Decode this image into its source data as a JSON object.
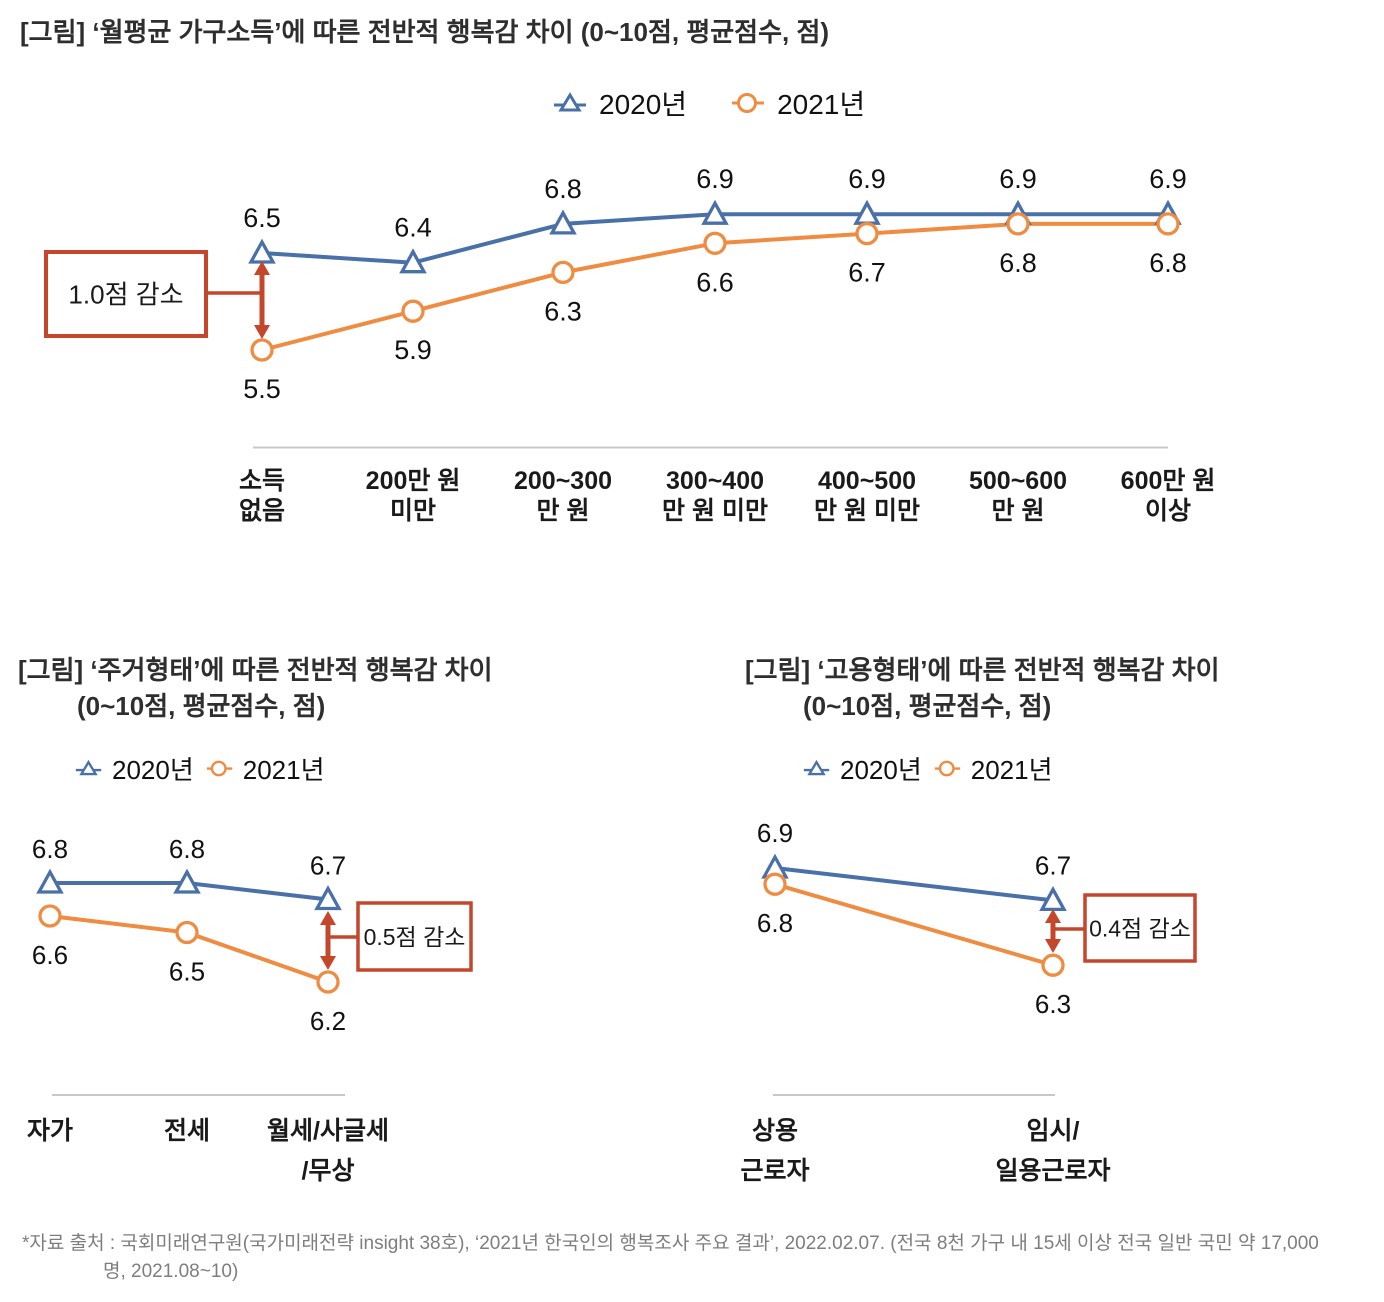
{
  "colors": {
    "y2020": "#4A70A8",
    "y2021": "#F08C41",
    "annotation": "#C4472B",
    "axis": "#C8C8C8",
    "value_text": "#111111"
  },
  "legend": {
    "y2020": "2020년",
    "y2021": "2021년"
  },
  "footer": {
    "line1": "*자료 출처 : 국회미래연구원(국가미래전략 insight 38호), ‘2021년 한국인의 행복조사 주요 결과’, 2022.02.07. (전국 8천 가구 내 15세 이상 전국 일반 국민 약 17,000",
    "line2": "명, 2021.08~10)"
  },
  "chart_data": [
    {
      "id": "income",
      "type": "line",
      "title_lines": [
        "[그림] ‘월평균 가구소득’에 따른 전반적 행복감 차이 (0~10점, 평균점수, 점)"
      ],
      "categories": [
        [
          "소득",
          "없음"
        ],
        [
          "200만 원",
          "미만"
        ],
        [
          "200~300",
          "만 원"
        ],
        [
          "300~400",
          "만 원 미만"
        ],
        [
          "400~500",
          "만 원 미만"
        ],
        [
          "500~600",
          "만 원"
        ],
        [
          "600만 원",
          "이상"
        ]
      ],
      "series": [
        {
          "name": "2020년",
          "values": [
            6.5,
            6.4,
            6.8,
            6.9,
            6.9,
            6.9,
            6.9
          ]
        },
        {
          "name": "2021년",
          "values": [
            5.5,
            5.9,
            6.3,
            6.6,
            6.7,
            6.8,
            6.8
          ]
        }
      ],
      "annotation": {
        "text": "1.0점 감소",
        "point_index": 0
      },
      "value_scale": "0~10점, 평균점수, 점",
      "legend_position": "top-center",
      "grid": false
    },
    {
      "id": "housing",
      "type": "line",
      "title_lines": [
        "[그림] ‘주거형태’에 따른 전반적 행복감 차이",
        "(0~10점, 평균점수, 점)"
      ],
      "categories": [
        [
          "자가"
        ],
        [
          "전세"
        ],
        [
          "월세/사글세",
          "/무상"
        ]
      ],
      "series": [
        {
          "name": "2020년",
          "values": [
            6.8,
            6.8,
            6.7
          ]
        },
        {
          "name": "2021년",
          "values": [
            6.6,
            6.5,
            6.2
          ]
        }
      ],
      "annotation": {
        "text": "0.5점 감소",
        "point_index": 2
      },
      "value_scale": "0~10점, 평균점수, 점",
      "legend_position": "top-left",
      "grid": false
    },
    {
      "id": "employment",
      "type": "line",
      "title_lines": [
        "[그림] ‘고용형태’에 따른 전반적 행복감 차이",
        "(0~10점, 평균점수, 점)"
      ],
      "categories": [
        [
          "상용",
          "근로자"
        ],
        [
          "임시/",
          "일용근로자"
        ]
      ],
      "series": [
        {
          "name": "2020년",
          "values": [
            6.9,
            6.7
          ]
        },
        {
          "name": "2021년",
          "values": [
            6.8,
            6.3
          ]
        }
      ],
      "annotation": {
        "text": "0.4점 감소",
        "point_index": 1
      },
      "value_scale": "0~10점, 평균점수, 점",
      "legend_position": "top-left",
      "grid": false
    }
  ]
}
